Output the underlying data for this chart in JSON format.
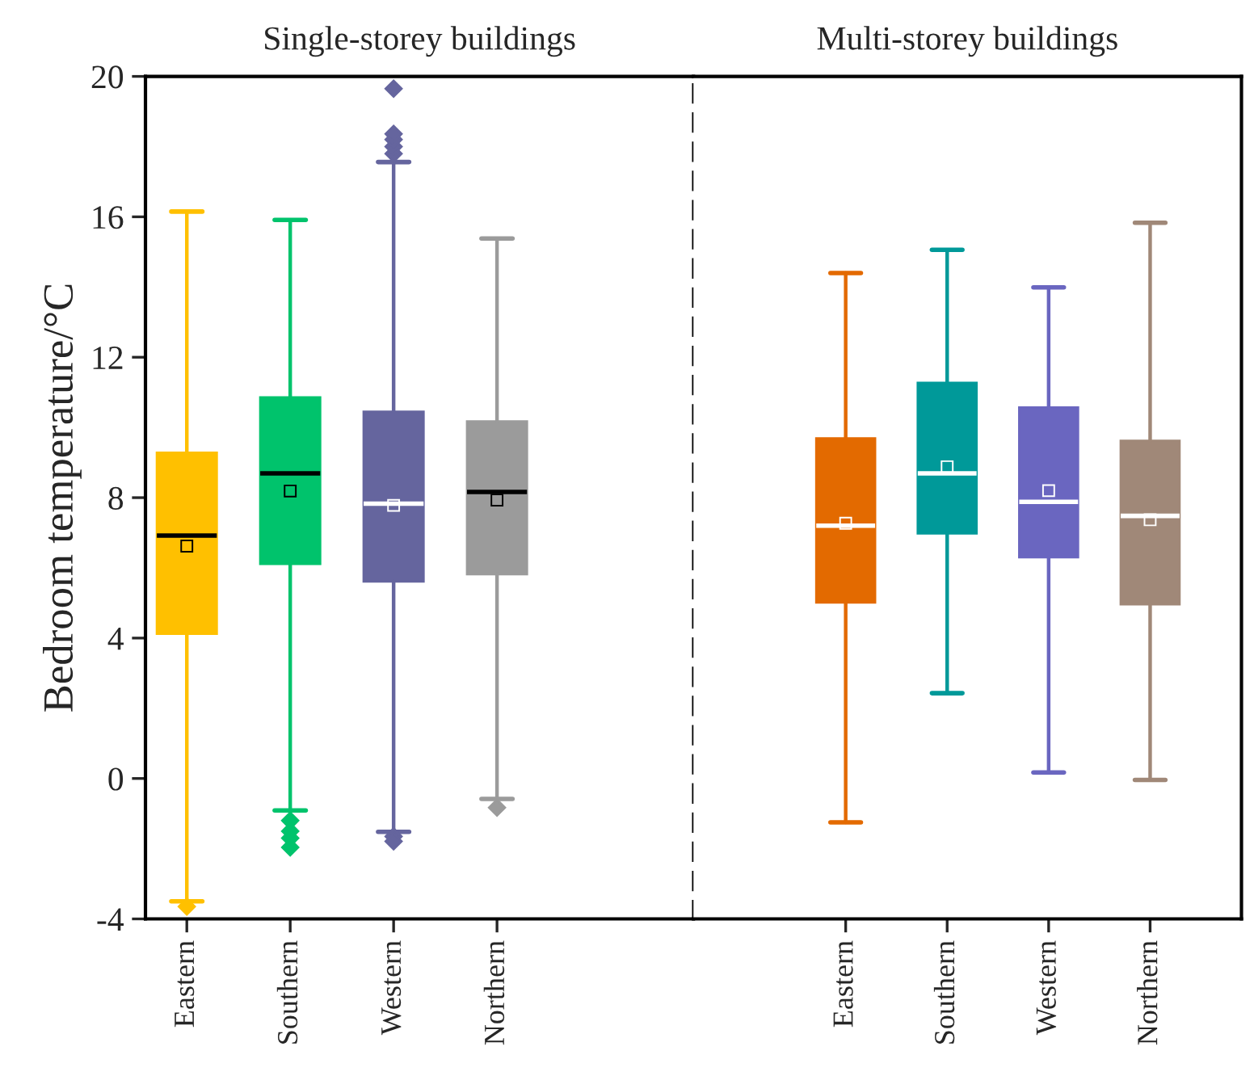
{
  "chart_data": [
    {
      "type": "box",
      "title": "Single-storey buildings",
      "ylabel": "Bedroom temperature/°C",
      "categories": [
        "Eastern",
        "Southern",
        "Western",
        "Northern"
      ],
      "colors": [
        "#ffc000",
        "#00c36c",
        "#65659e",
        "#9b9b9b"
      ],
      "ylim": [
        -4,
        20
      ],
      "yticks": [
        -4,
        0,
        4,
        8,
        12,
        16,
        20
      ],
      "marker": "square",
      "boxes": [
        {
          "low": -3.5,
          "q1": 4.12,
          "median": 6.92,
          "q3": 9.28,
          "high": 16.15,
          "mean": 6.62,
          "outliers": [
            -3.65
          ]
        },
        {
          "low": -0.91,
          "q1": 6.11,
          "median": 8.69,
          "q3": 10.86,
          "high": 15.91,
          "mean": 8.19,
          "outliers": [
            -1.2,
            -1.5,
            -1.7,
            -1.96
          ]
        },
        {
          "low": -1.52,
          "q1": 5.61,
          "median": 7.83,
          "q3": 10.45,
          "high": 17.56,
          "mean": 7.78,
          "outliers": [
            17.8,
            18.0,
            18.2,
            18.36,
            19.65,
            -1.65,
            -1.79
          ]
        },
        {
          "low": -0.58,
          "q1": 5.82,
          "median": 8.16,
          "q3": 10.17,
          "high": 15.38,
          "mean": 7.93,
          "outliers": [
            -0.83
          ]
        }
      ]
    },
    {
      "type": "box",
      "title": "Multi-storey buildings",
      "categories": [
        "Eastern",
        "Southern",
        "Western",
        "Northern"
      ],
      "colors": [
        "#e36a00",
        "#009999",
        "#6a66c0",
        "#a08878"
      ],
      "ylim": [
        -4,
        20
      ],
      "yticks": [
        -4,
        0,
        4,
        8,
        12,
        16,
        20
      ],
      "tick_labels": "x",
      "marker": "square",
      "boxes": [
        {
          "low": -1.25,
          "q1": 5.01,
          "median": 7.2,
          "q3": 9.69,
          "high": 14.4,
          "mean": 7.27
        },
        {
          "low": 2.43,
          "q1": 6.98,
          "median": 8.69,
          "q3": 11.27,
          "high": 15.06,
          "mean": 8.88
        },
        {
          "low": 0.17,
          "q1": 6.3,
          "median": 7.88,
          "q3": 10.57,
          "high": 13.99,
          "mean": 8.2
        },
        {
          "low": -0.04,
          "q1": 4.96,
          "median": 7.48,
          "q3": 9.62,
          "high": 15.83,
          "mean": 7.37
        }
      ]
    }
  ]
}
